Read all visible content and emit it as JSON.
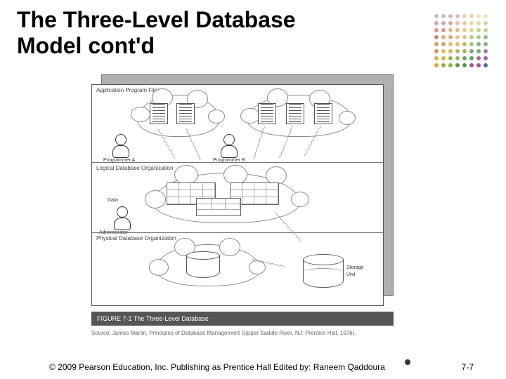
{
  "title_line1": "The Three-Level Database",
  "title_line2": "Model cont'd",
  "dot_grid": {
    "rows": 8,
    "cols": 8,
    "colors": [
      "#4a4a4a",
      "#a03030",
      "#b8762c",
      "#c9a326",
      "#88a032",
      "#4a8a4a",
      "#8a4a88",
      "#3a5a8a"
    ]
  },
  "figure": {
    "tier1_label": "Application Program Files",
    "tier2_label": "Logical Database Organization",
    "tier3_label": "Physical Database Organization",
    "programmer_a": "Programmer A",
    "programmer_b": "Programmer B",
    "data_admin_l1": "Data",
    "data_admin_l2": "Administrator",
    "storage_l1": "Storage",
    "storage_l2": "Unit",
    "caption": "FIGURE 7-1   The Three-Level Database",
    "source": "Source: James Martin, Principles of Database Management (Upper Saddle River, NJ: Prentice Hall, 1976)."
  },
  "footer": "© 2009 Pearson Education, Inc. Publishing as Prentice Hall Edited by: Raneem Qaddoura",
  "page_number": "7-7",
  "colors": {
    "title": "#000000",
    "caption_bg": "#555555",
    "box_shadow": "#b0b0b0"
  }
}
